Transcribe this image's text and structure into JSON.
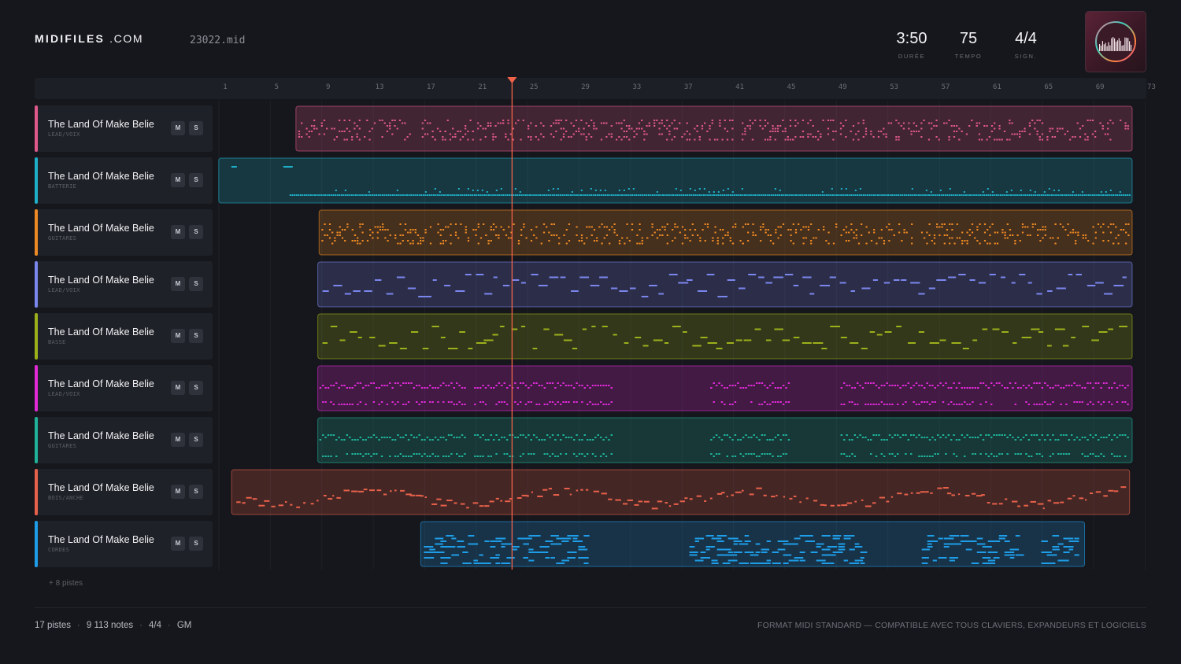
{
  "app": {
    "logo_main": "MIDIFILES",
    "logo_suffix": ".COM",
    "filename": "23022.mid"
  },
  "stats": [
    {
      "value": "3:50",
      "label": "DURÉE"
    },
    {
      "value": "75",
      "label": "TEMPO"
    },
    {
      "value": "4/4",
      "label": "SIGN."
    }
  ],
  "ruler": {
    "ticks": [
      "1",
      "5",
      "9",
      "13",
      "17",
      "21",
      "25",
      "29",
      "33",
      "37",
      "41",
      "45",
      "49",
      "53",
      "57",
      "61",
      "65",
      "69",
      "73"
    ],
    "playhead_bar": 23.3
  },
  "tracks": [
    {
      "name": "The Land Of Make Belie",
      "category": "LEAD/VOIX",
      "color": "#e0598a",
      "region": [
        6.5,
        71.5
      ],
      "pattern": "dense",
      "mute": "M",
      "solo": "S"
    },
    {
      "name": "The Land Of Make Belie",
      "category": "BATTERIE",
      "color": "#1fb0c9",
      "region": [
        0.5,
        71.5
      ],
      "pattern": "drums",
      "mute": "M",
      "solo": "S"
    },
    {
      "name": "The Land Of Make Belie",
      "category": "GUITARES",
      "color": "#ee8a24",
      "region": [
        8.3,
        71.5
      ],
      "pattern": "dense",
      "mute": "M",
      "solo": "S"
    },
    {
      "name": "The Land Of Make Belie",
      "category": "LEAD/VOIX",
      "color": "#7b86ee",
      "region": [
        8.2,
        71.5
      ],
      "pattern": "sparse",
      "mute": "M",
      "solo": "S"
    },
    {
      "name": "The Land Of Make Belie",
      "category": "BASSE",
      "color": "#9cb01a",
      "region": [
        8.2,
        71.5
      ],
      "pattern": "sparse",
      "mute": "M",
      "solo": "S"
    },
    {
      "name": "The Land Of Make Belie",
      "category": "LEAD/VOIX",
      "color": "#e02ad8",
      "region": [
        8.2,
        71.5
      ],
      "pattern": "bands",
      "mute": "M",
      "solo": "S"
    },
    {
      "name": "The Land Of Make Belie",
      "category": "GUITARES",
      "color": "#1eb39a",
      "region": [
        8.2,
        71.5
      ],
      "pattern": "bands",
      "mute": "M",
      "solo": "S"
    },
    {
      "name": "The Land Of Make Belie",
      "category": "BOIS/ANCHE",
      "color": "#e8614a",
      "region": [
        1.5,
        71.3
      ],
      "pattern": "melody",
      "mute": "M",
      "solo": "S"
    },
    {
      "name": "The Land Of Make Belie",
      "category": "CORDES",
      "color": "#1e9de8",
      "region": [
        16.2,
        67.8
      ],
      "pattern": "clusters",
      "mute": "M",
      "solo": "S"
    }
  ],
  "more_tracks": "+ 8 pistes",
  "summary": {
    "tracks": "17 pistes",
    "notes": "9 113 notes",
    "signature": "4/4",
    "standard": "GM"
  },
  "format_note": "FORMAT MIDI STANDARD — COMPATIBLE AVEC TOUS CLAVIERS, EXPANDEURS ET LOGICIELS",
  "colors": {
    "playhead": "#f0624a",
    "background": "#16171c"
  }
}
